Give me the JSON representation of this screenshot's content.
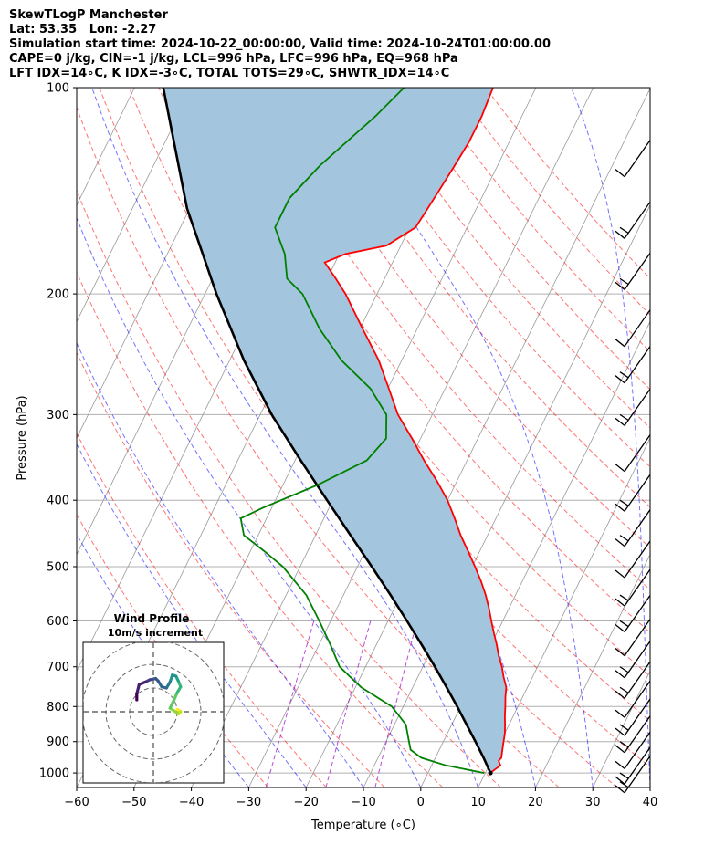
{
  "title_lines": [
    "SkewTLogP Manchester",
    "Lat: 53.35   Lon: -2.27",
    "Simulation start time: 2024-10-22_00:00:00, Valid time: 2024-10-24T01:00:00.00",
    "CAPE=0 j/kg, CIN=-1 j/kg, LCL=996 hPa, LFC=996 hPa, EQ=968 hPa",
    "LFT IDX=14∘C, K IDX=-3∘C, TOTAL TOTS=29∘C, SHWTR_IDX=14∘C"
  ],
  "colors": {
    "temperature": "#ff0000",
    "dewpoint": "#008000",
    "parcel": "#000000",
    "cape_fill": "#a3c5de",
    "dry_adiabat": "#ff0000",
    "moist_adiabat": "#0000ff",
    "mixing_ratio": "#9900cc",
    "isotherm": "#999999",
    "grid": "#b0b0b0"
  },
  "chart_data": [
    {
      "type": "line",
      "subtype": "skew-T log-P diagram",
      "xlabel": "Temperature (∘C)",
      "ylabel": "Pressure (hPa)",
      "xlim": [
        -60,
        40
      ],
      "ylim": [
        1050,
        100
      ],
      "y_scale": "log",
      "x_ticks": [
        -60,
        -50,
        -40,
        -30,
        -20,
        -10,
        0,
        10,
        20,
        30,
        40
      ],
      "x_tick_labels": [
        "−60",
        "−50",
        "−40",
        "−30",
        "−20",
        "−10",
        "0",
        "10",
        "20",
        "30",
        "40"
      ],
      "y_ticks": [
        1000,
        900,
        800,
        700,
        600,
        500,
        400,
        300,
        200,
        100
      ],
      "y_tick_labels": [
        "1000",
        "900",
        "800",
        "700",
        "600",
        "500",
        "400",
        "300",
        "200",
        "100"
      ],
      "grid": true,
      "series": [
        {
          "key": "temperature",
          "points": [
            [
              1000,
              10.9
            ],
            [
              990,
              11.3
            ],
            [
              975,
              12.0
            ],
            [
              960,
              11.3
            ],
            [
              950,
              11.5
            ],
            [
              925,
              11.0
            ],
            [
              900,
              10.5
            ],
            [
              875,
              10.0
            ],
            [
              850,
              9.3
            ],
            [
              825,
              8.5
            ],
            [
              800,
              7.8
            ],
            [
              775,
              7.0
            ],
            [
              750,
              6.3
            ],
            [
              725,
              5.0
            ],
            [
              700,
              3.8
            ],
            [
              675,
              2.3
            ],
            [
              650,
              1.0
            ],
            [
              625,
              -0.5
            ],
            [
              600,
              -2.0
            ],
            [
              575,
              -3.5
            ],
            [
              550,
              -5.2
            ],
            [
              525,
              -7.2
            ],
            [
              500,
              -9.5
            ],
            [
              475,
              -12.0
            ],
            [
              450,
              -14.7
            ],
            [
              425,
              -17.2
            ],
            [
              400,
              -20.0
            ],
            [
              375,
              -23.5
            ],
            [
              350,
              -27.5
            ],
            [
              325,
              -31.5
            ],
            [
              300,
              -36.0
            ],
            [
              275,
              -39.8
            ],
            [
              250,
              -44.0
            ],
            [
              225,
              -49.5
            ],
            [
              200,
              -55.5
            ],
            [
              190,
              -58.5
            ],
            [
              180,
              -61.8
            ],
            [
              175,
              -59.0
            ],
            [
              170,
              -52.5
            ],
            [
              160,
              -49.0
            ],
            [
              150,
              -48.5
            ],
            [
              140,
              -48.0
            ],
            [
              130,
              -47.5
            ],
            [
              120,
              -47.0
            ],
            [
              110,
              -47.0
            ],
            [
              100,
              -47.5
            ]
          ]
        },
        {
          "key": "dewpoint",
          "points": [
            [
              1000,
              9.8
            ],
            [
              975,
              2.5
            ],
            [
              950,
              -2.5
            ],
            [
              925,
              -5.0
            ],
            [
              900,
              -6.0
            ],
            [
              850,
              -8.0
            ],
            [
              800,
              -12.0
            ],
            [
              750,
              -19.0
            ],
            [
              700,
              -24.5
            ],
            [
              650,
              -28.0
            ],
            [
              600,
              -32.0
            ],
            [
              550,
              -36.5
            ],
            [
              500,
              -43.0
            ],
            [
              475,
              -47.5
            ],
            [
              450,
              -52.5
            ],
            [
              425,
              -54.5
            ],
            [
              410,
              -51.5
            ],
            [
              380,
              -44.0
            ],
            [
              350,
              -37.5
            ],
            [
              325,
              -36.0
            ],
            [
              300,
              -38.0
            ],
            [
              275,
              -43.0
            ],
            [
              250,
              -50.5
            ],
            [
              225,
              -57.0
            ],
            [
              200,
              -63.0
            ],
            [
              190,
              -67.0
            ],
            [
              175,
              -69.5
            ],
            [
              160,
              -73.5
            ],
            [
              145,
              -73.5
            ],
            [
              130,
              -71.0
            ],
            [
              110,
              -65.5
            ],
            [
              100,
              -63.0
            ]
          ]
        },
        {
          "key": "parcel",
          "points": [
            [
              1000,
              10.9
            ],
            [
              950,
              8.4
            ],
            [
              900,
              5.6
            ],
            [
              850,
              2.6
            ],
            [
              800,
              -0.6
            ],
            [
              750,
              -4.1
            ],
            [
              700,
              -7.9
            ],
            [
              650,
              -12.1
            ],
            [
              600,
              -16.7
            ],
            [
              550,
              -21.8
            ],
            [
              500,
              -27.5
            ],
            [
              450,
              -33.9
            ],
            [
              400,
              -41.0
            ],
            [
              350,
              -49.0
            ],
            [
              300,
              -58.0
            ],
            [
              250,
              -67.5
            ],
            [
              200,
              -78.0
            ],
            [
              150,
              -90.5
            ],
            [
              100,
              -105.0
            ]
          ]
        }
      ]
    },
    {
      "type": "scatter",
      "subtype": "hodograph",
      "title": "Wind Profile",
      "subtitle": "10m/s increment",
      "units": "m/s",
      "rings": [
        10,
        20,
        30
      ],
      "points": [
        [
          10.0,
          1.0
        ],
        [
          11.0,
          0.5
        ],
        [
          10.5,
          -1.0
        ],
        [
          11.5,
          0.0
        ],
        [
          10.0,
          -0.5
        ],
        [
          7.0,
          1.5
        ],
        [
          8.5,
          4.5
        ],
        [
          10.0,
          8.0
        ],
        [
          11.5,
          10.5
        ],
        [
          10.5,
          13.0
        ],
        [
          9.5,
          15.0
        ],
        [
          8.0,
          15.5
        ],
        [
          7.0,
          12.5
        ],
        [
          5.5,
          10.0
        ],
        [
          3.5,
          10.5
        ],
        [
          2.0,
          13.0
        ],
        [
          1.0,
          14.0
        ],
        [
          -1.5,
          13.5
        ],
        [
          -3.5,
          12.5
        ],
        [
          -6.0,
          11.5
        ],
        [
          -7.0,
          7.5
        ],
        [
          -7.0,
          5.0
        ]
      ]
    }
  ]
}
